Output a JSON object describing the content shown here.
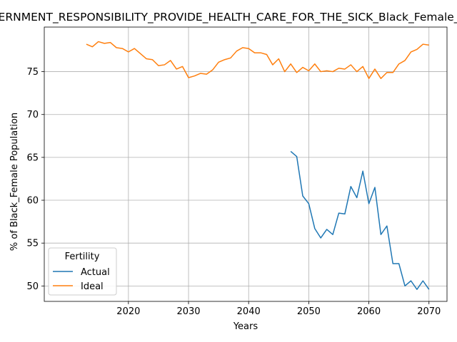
{
  "chart_data": {
    "type": "line",
    "title": "GOVERNMENT_RESPONSIBILITY_PROVIDE_HEALTH_CARE_FOR_THE_SICK_Black_Female_Population",
    "xlabel": "Years",
    "ylabel": "% of Black_Female Population",
    "xlim": [
      2006,
      2073
    ],
    "ylim": [
      48.2,
      80.2
    ],
    "xticks": [
      2020,
      2030,
      2040,
      2050,
      2060,
      2070
    ],
    "yticks": [
      50,
      55,
      60,
      65,
      70,
      75
    ],
    "grid": true,
    "legend": {
      "title": "Fertility",
      "placement": "lower-left"
    },
    "series": [
      {
        "name": "Actual",
        "color": "#1f77b4",
        "x": [
          2047,
          2048,
          2049,
          2050,
          2051,
          2052,
          2053,
          2054,
          2055,
          2056,
          2057,
          2058,
          2059,
          2060,
          2061,
          2062,
          2063,
          2064,
          2065,
          2066,
          2067,
          2068,
          2069,
          2070
        ],
        "values": [
          65.7,
          65.1,
          60.5,
          59.6,
          56.7,
          55.6,
          56.6,
          56.0,
          58.5,
          58.4,
          61.6,
          60.3,
          63.4,
          59.6,
          61.5,
          56.0,
          57.0,
          52.6,
          52.6,
          50.0,
          50.6,
          49.6,
          50.6,
          49.6
        ]
      },
      {
        "name": "Ideal",
        "color": "#ff7f0e",
        "x": [
          2013,
          2014,
          2015,
          2016,
          2017,
          2018,
          2019,
          2020,
          2021,
          2022,
          2023,
          2024,
          2025,
          2026,
          2027,
          2028,
          2029,
          2030,
          2031,
          2032,
          2033,
          2034,
          2035,
          2036,
          2037,
          2038,
          2039,
          2040,
          2041,
          2042,
          2043,
          2044,
          2045,
          2046,
          2047,
          2048,
          2049,
          2050,
          2051,
          2052,
          2053,
          2054,
          2055,
          2056,
          2057,
          2058,
          2059,
          2060,
          2061,
          2062,
          2063,
          2064,
          2065,
          2066,
          2067,
          2068,
          2069,
          2070
        ],
        "values": [
          78.2,
          77.9,
          78.5,
          78.3,
          78.4,
          77.8,
          77.7,
          77.3,
          77.7,
          77.1,
          76.5,
          76.4,
          75.7,
          75.8,
          76.3,
          75.3,
          75.6,
          74.3,
          74.5,
          74.8,
          74.7,
          75.2,
          76.1,
          76.4,
          76.6,
          77.4,
          77.8,
          77.7,
          77.2,
          77.2,
          77.0,
          75.8,
          76.5,
          75.0,
          75.9,
          74.9,
          75.5,
          75.1,
          75.9,
          75.0,
          75.1,
          75.0,
          75.4,
          75.3,
          75.8,
          75.0,
          75.6,
          74.2,
          75.3,
          74.2,
          74.9,
          74.9,
          75.9,
          76.3,
          77.3,
          77.6,
          78.2,
          78.1
        ]
      }
    ]
  }
}
